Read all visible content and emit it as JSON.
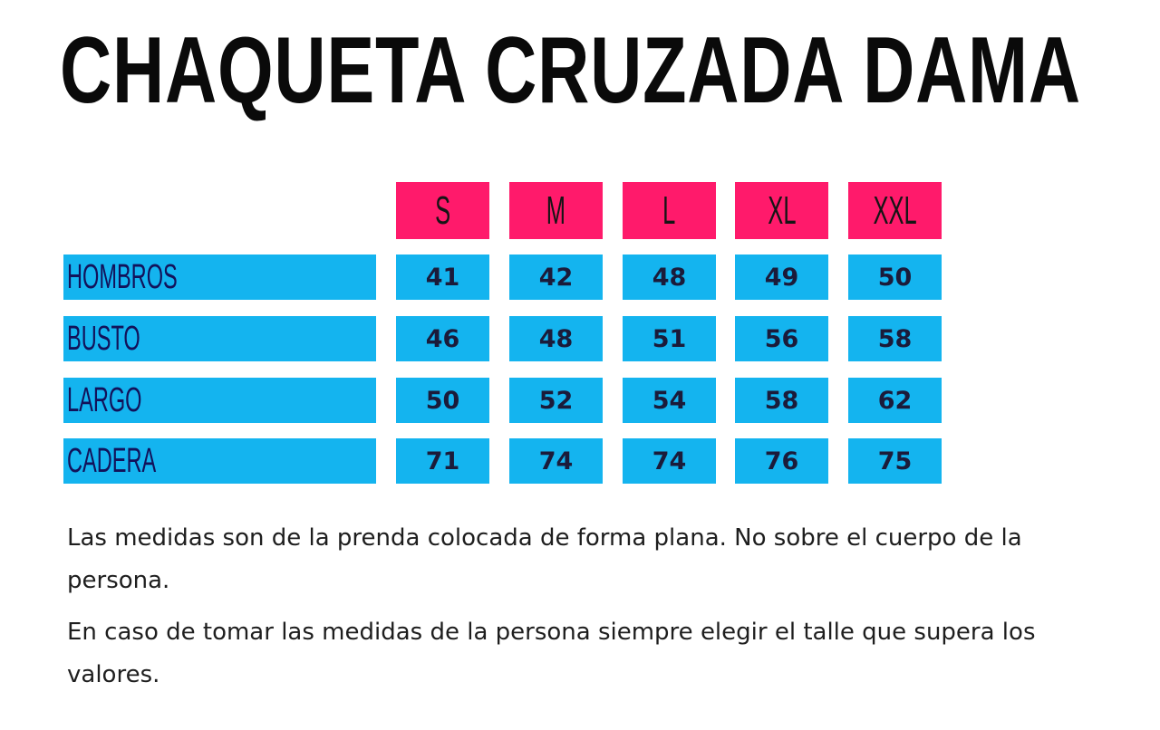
{
  "title": "CHAQUETA CRUZADA DAMA",
  "colors": {
    "size_header_bg": "#ff1a6b",
    "cell_bg": "#14b4ef",
    "label_text": "#12125a"
  },
  "table": {
    "sizes": [
      "S",
      "M",
      "L",
      "XL",
      "XXL"
    ],
    "rows": [
      {
        "label": "HOMBROS",
        "values": [
          "41",
          "42",
          "48",
          "49",
          "50"
        ]
      },
      {
        "label": "BUSTO",
        "values": [
          "46",
          "48",
          "51",
          "56",
          "58"
        ]
      },
      {
        "label": "LARGO",
        "values": [
          "50",
          "52",
          "54",
          "58",
          "62"
        ]
      },
      {
        "label": "CADERA",
        "values": [
          "71",
          "74",
          "74",
          "76",
          "75"
        ]
      }
    ]
  },
  "notes": [
    "Las medidas son de la prenda colocada de forma plana. No sobre el cuerpo de la persona.",
    "En caso de tomar las medidas de la persona siempre elegir el talle que supera los valores."
  ]
}
